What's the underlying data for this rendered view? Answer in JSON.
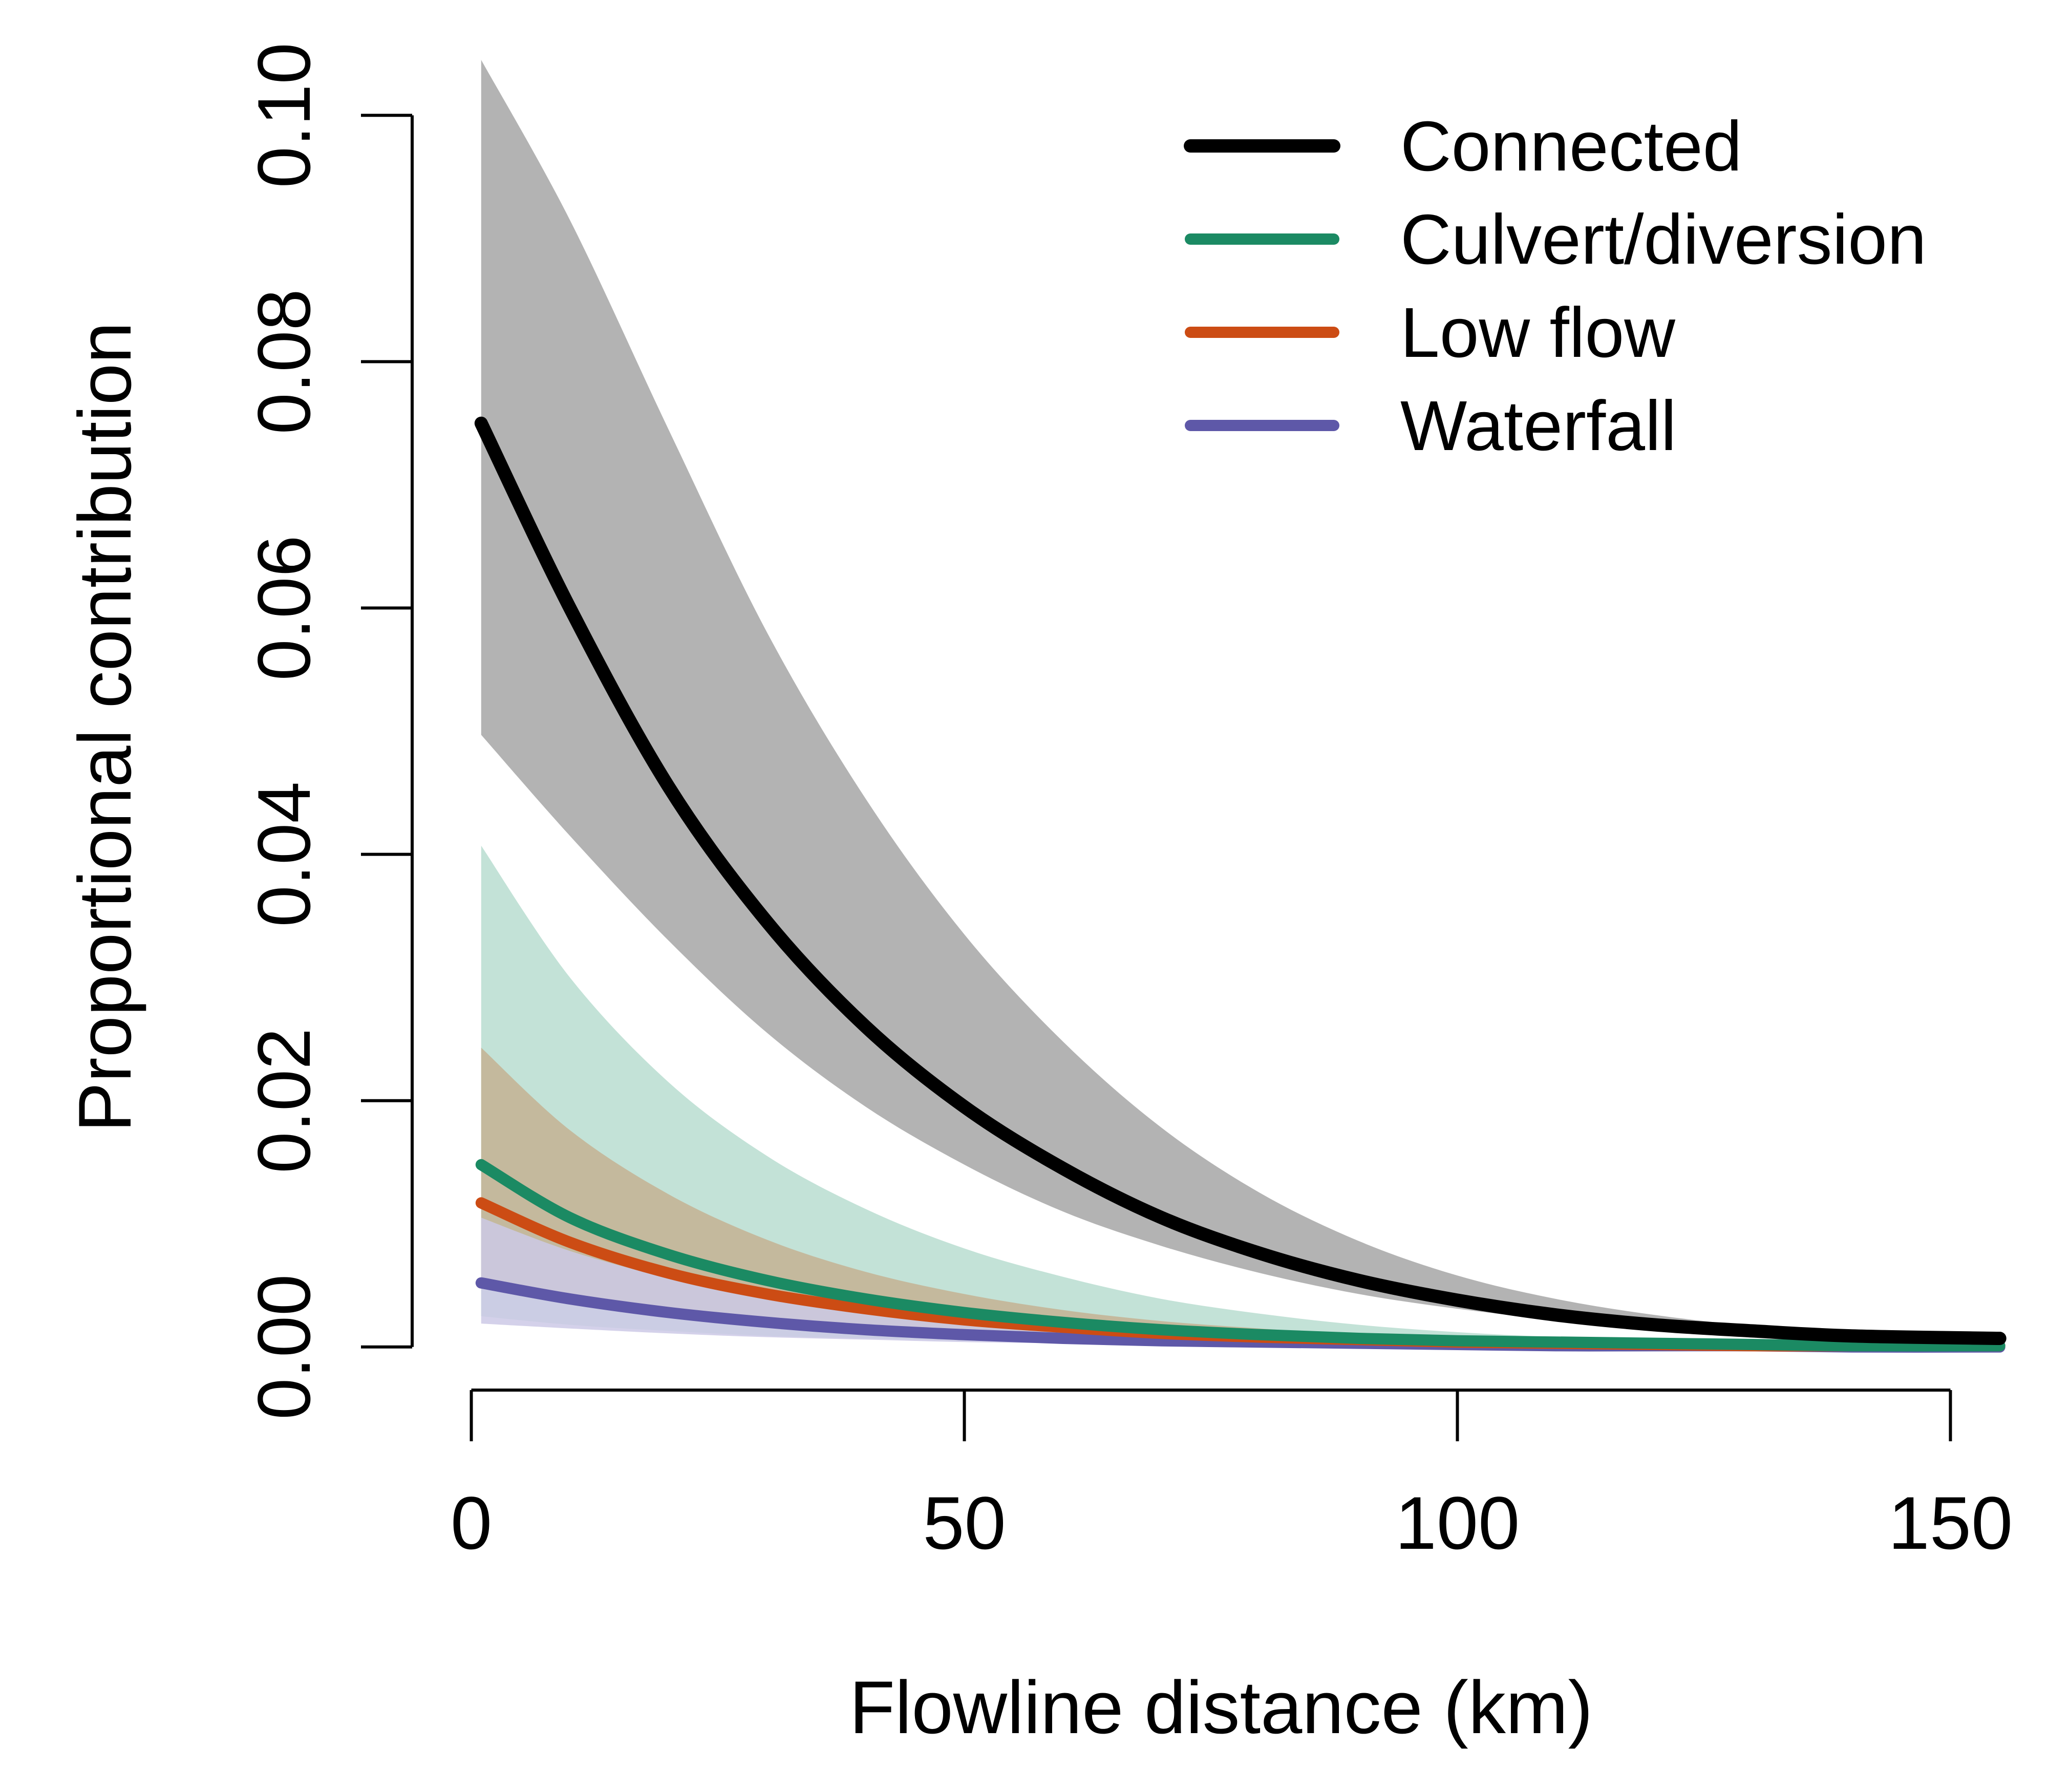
{
  "chart_data": {
    "type": "line",
    "xlabel": "Flowline distance (km)",
    "ylabel": "Proportional contribution",
    "xlim": [
      -6,
      156
    ],
    "ylim": [
      -0.0035,
      0.105
    ],
    "x_ticks": [
      0,
      50,
      100,
      150
    ],
    "x_tick_labels": [
      "0",
      "50",
      "100",
      "150"
    ],
    "y_ticks": [
      0.0,
      0.02,
      0.04,
      0.06,
      0.08,
      0.1
    ],
    "y_tick_labels": [
      "0.00",
      "0.02",
      "0.04",
      "0.06",
      "0.08",
      "0.10"
    ],
    "grid": false,
    "legend_position": "top-right",
    "series": [
      {
        "name": "Connected",
        "color": "#000000",
        "band_color": "#b3b3b3",
        "x": [
          1,
          10,
          20,
          30,
          40,
          50,
          60,
          70,
          80,
          90,
          100,
          110,
          120,
          130,
          140,
          155
        ],
        "mean": [
          0.075,
          0.06,
          0.0455,
          0.0345,
          0.026,
          0.0195,
          0.0145,
          0.0105,
          0.0076,
          0.0054,
          0.0038,
          0.0026,
          0.0018,
          0.0013,
          0.0009,
          0.0007
        ],
        "lower": [
          0.0497,
          0.0415,
          0.033,
          0.0255,
          0.0195,
          0.0148,
          0.011,
          0.0082,
          0.006,
          0.0043,
          0.0031,
          0.0022,
          0.0015,
          0.0011,
          0.0008,
          0.0006
        ],
        "upper": [
          0.1045,
          0.0915,
          0.0745,
          0.058,
          0.0445,
          0.0335,
          0.0248,
          0.0178,
          0.0125,
          0.0086,
          0.0058,
          0.0039,
          0.0026,
          0.0017,
          0.0011,
          0.0008
        ]
      },
      {
        "name": "Culvert/diversion",
        "color": "#1b8a63",
        "band_color": "#b9ddd0",
        "x": [
          1,
          10,
          20,
          30,
          40,
          50,
          60,
          70,
          80,
          90,
          100,
          110,
          120,
          130,
          140,
          155
        ],
        "mean": [
          0.0148,
          0.0105,
          0.0075,
          0.0054,
          0.0039,
          0.0028,
          0.002,
          0.0014,
          0.001,
          0.0007,
          0.0005,
          0.0004,
          0.0003,
          0.0002,
          0.0001,
          0.0001
        ],
        "lower": [
          0.0025,
          0.0018,
          0.0013,
          0.0009,
          0.0007,
          0.0005,
          0.0004,
          0.0003,
          0.0002,
          0.0001,
          0.0001,
          0.0001,
          0.0,
          0.0,
          0.0,
          0.0
        ],
        "upper": [
          0.0407,
          0.03,
          0.0215,
          0.0155,
          0.0112,
          0.008,
          0.0057,
          0.0039,
          0.0027,
          0.0018,
          0.0012,
          0.0008,
          0.0005,
          0.0003,
          0.0002,
          0.0001
        ]
      },
      {
        "name": "Low flow",
        "color": "#cc4c14",
        "band_color": "#c4b193",
        "x": [
          1,
          10,
          20,
          30,
          40,
          50,
          60,
          70,
          80,
          90,
          100,
          110,
          120,
          130,
          140,
          155
        ],
        "mean": [
          0.0117,
          0.0085,
          0.006,
          0.0043,
          0.0031,
          0.0022,
          0.0016,
          0.0011,
          0.0008,
          0.0006,
          0.0004,
          0.0003,
          0.0002,
          0.0001,
          0.0001,
          0.0001
        ],
        "lower": [
          0.005,
          0.0036,
          0.0025,
          0.0018,
          0.0013,
          0.0009,
          0.0007,
          0.0005,
          0.0003,
          0.0002,
          0.0002,
          0.0001,
          0.0001,
          0.0,
          0.0,
          0.0
        ],
        "upper": [
          0.0243,
          0.0176,
          0.0124,
          0.0087,
          0.0061,
          0.0043,
          0.003,
          0.0021,
          0.0015,
          0.001,
          0.0007,
          0.0005,
          0.0003,
          0.0002,
          0.0001,
          0.0001
        ]
      },
      {
        "name": "Waterfall",
        "color": "#5e58a8",
        "band_color": "#cdc9e6",
        "x": [
          1,
          10,
          20,
          30,
          40,
          50,
          60,
          70,
          80,
          90,
          100,
          110,
          120,
          130,
          140,
          155
        ],
        "mean": [
          0.0052,
          0.0039,
          0.0028,
          0.002,
          0.0014,
          0.001,
          0.0007,
          0.0005,
          0.0004,
          0.0003,
          0.0002,
          0.0001,
          0.0001,
          0.0001,
          0.0,
          0.0
        ],
        "lower": [
          0.0019,
          0.0015,
          0.0011,
          0.0008,
          0.0006,
          0.0004,
          0.0003,
          0.0002,
          0.0001,
          0.0001,
          0.0001,
          0.0,
          0.0,
          0.0,
          0.0,
          0.0
        ],
        "upper": [
          0.0105,
          0.0078,
          0.0056,
          0.004,
          0.0029,
          0.0021,
          0.0015,
          0.001,
          0.0007,
          0.0005,
          0.0003,
          0.0002,
          0.0002,
          0.0001,
          0.0001,
          0.0
        ]
      }
    ]
  }
}
